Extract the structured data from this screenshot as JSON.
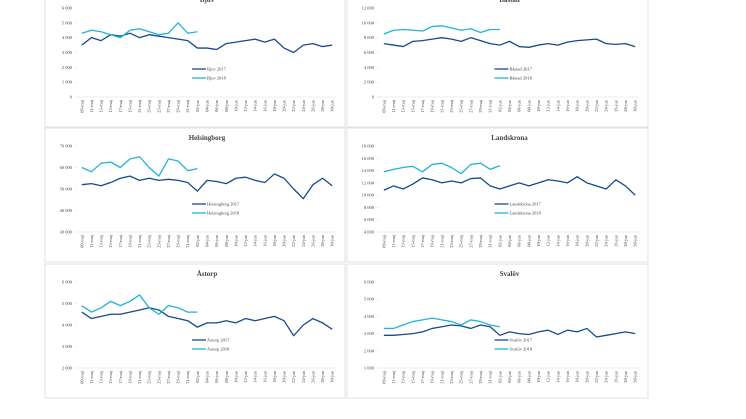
{
  "chart_data": [
    {
      "type": "line",
      "title": "Bjuv",
      "legend": "lower center",
      "grid": false,
      "categories": [
        "09-maj",
        "11-maj",
        "13-maj",
        "15-maj",
        "17-maj",
        "19-maj",
        "21-maj",
        "23-maj",
        "25-maj",
        "27-maj",
        "29-maj",
        "31-maj",
        "02-jun",
        "04-jun",
        "06-jun",
        "08-jun",
        "10-jun",
        "12-jun",
        "14-jun",
        "16-jun",
        "18-jun",
        "20-jun",
        "22-jun",
        "24-jun",
        "26-jun",
        "28-jun",
        "30-jun"
      ],
      "series": [
        {
          "name": "Bjuv 2017",
          "color": "#174a8b",
          "values": [
            3500,
            4000,
            3800,
            4200,
            4100,
            4300,
            4000,
            4200,
            4100,
            4000,
            3900,
            3800,
            3300,
            3300,
            3200,
            3600,
            3700,
            3800,
            3900,
            3700,
            3900,
            3300,
            3000,
            3500,
            3600,
            3400,
            3500
          ]
        },
        {
          "name": "Bjuv 2018",
          "color": "#21b4d6",
          "values": [
            4300,
            4500,
            4400,
            4200,
            4000,
            4500,
            4600,
            4400,
            4200,
            4300,
            5000,
            4300,
            4400,
            null,
            null,
            null,
            null,
            null,
            null,
            null,
            null,
            null,
            null,
            null,
            null,
            null,
            null
          ]
        }
      ],
      "ylim": [
        0,
        6000
      ],
      "yticks": [
        0,
        {
          "value": 1000,
          "label": "1 000"
        },
        {
          "value": 2000,
          "label": "2 000"
        },
        {
          "value": 3000,
          "label": "3 000"
        },
        {
          "value": 4000,
          "label": "4 000"
        },
        {
          "value": 5000,
          "label": "5 000"
        },
        {
          "value": 6000,
          "label": "6 000"
        }
      ]
    },
    {
      "type": "line",
      "title": "Båstad",
      "legend": "lower center",
      "grid": false,
      "categories": [
        "09-maj",
        "11-maj",
        "13-maj",
        "15-maj",
        "17-maj",
        "19-maj",
        "21-maj",
        "23-maj",
        "25-maj",
        "27-maj",
        "29-maj",
        "31-maj",
        "02-jun",
        "04-jun",
        "06-jun",
        "08-jun",
        "10-jun",
        "12-jun",
        "14-jun",
        "16-jun",
        "18-jun",
        "20-jun",
        "22-jun",
        "24-jun",
        "26-jun",
        "28-jun",
        "30-jun"
      ],
      "series": [
        {
          "name": "Båstad 2017",
          "color": "#174a8b",
          "values": [
            7200,
            7000,
            6800,
            7500,
            7600,
            7800,
            8000,
            7800,
            7500,
            8000,
            7600,
            7200,
            7000,
            7500,
            6800,
            6700,
            7000,
            7200,
            7000,
            7400,
            7600,
            7700,
            7800,
            7200,
            7100,
            7200,
            6800
          ]
        },
        {
          "name": "Båstad 2018",
          "color": "#21b4d6",
          "values": [
            8500,
            9000,
            9100,
            9000,
            8900,
            9500,
            9600,
            9300,
            9000,
            9200,
            8700,
            9100,
            9100,
            null,
            null,
            null,
            null,
            null,
            null,
            null,
            null,
            null,
            null,
            null,
            null,
            null,
            null
          ]
        }
      ],
      "ylim": [
        0,
        12000
      ],
      "yticks": [
        0,
        {
          "value": 2000,
          "label": "2 000"
        },
        {
          "value": 4000,
          "label": "4 000"
        },
        {
          "value": 6000,
          "label": "6 000"
        },
        {
          "value": 8000,
          "label": "8 000"
        },
        {
          "value": 10000,
          "label": "10 000"
        },
        {
          "value": 12000,
          "label": "12 000"
        }
      ]
    },
    {
      "type": "line",
      "title": "Helsingborg",
      "legend": "lower center",
      "grid": false,
      "categories": [
        "09-maj",
        "11-maj",
        "13-maj",
        "15-maj",
        "17-maj",
        "19-maj",
        "21-maj",
        "23-maj",
        "25-maj",
        "27-maj",
        "29-maj",
        "31-maj",
        "02-jun",
        "04-jun",
        "06-jun",
        "08-jun",
        "10-jun",
        "12-jun",
        "14-jun",
        "16-jun",
        "18-jun",
        "20-jun",
        "22-jun",
        "24-jun",
        "26-jun",
        "28-jun",
        "30-jun"
      ],
      "series": [
        {
          "name": "Helsingborg 2017",
          "color": "#174a8b",
          "values": [
            52000,
            52500,
            51500,
            53000,
            55000,
            56000,
            54000,
            55000,
            54000,
            54500,
            54000,
            53000,
            49000,
            54000,
            53500,
            52500,
            55000,
            55500,
            54000,
            53000,
            57000,
            55000,
            50000,
            45500,
            52000,
            55000,
            51500
          ]
        },
        {
          "name": "Helsingborg 2018",
          "color": "#21b4d6",
          "values": [
            60000,
            58000,
            62000,
            62500,
            60000,
            64000,
            65000,
            60000,
            56000,
            64000,
            63000,
            58500,
            59500,
            null,
            null,
            null,
            null,
            null,
            null,
            null,
            null,
            null,
            null,
            null,
            null,
            null,
            null
          ]
        }
      ],
      "ylim": [
        30000,
        70000
      ],
      "yticks": [
        {
          "value": 30000,
          "label": "30 000"
        },
        {
          "value": 40000,
          "label": "40 000"
        },
        {
          "value": 50000,
          "label": "50 000"
        },
        {
          "value": 60000,
          "label": "60 000"
        },
        {
          "value": 70000,
          "label": "70 000"
        }
      ]
    },
    {
      "type": "line",
      "title": "Landskrona",
      "legend": "lower center",
      "grid": false,
      "categories": [
        "09-maj",
        "11-maj",
        "13-maj",
        "15-maj",
        "17-maj",
        "19-maj",
        "21-maj",
        "23-maj",
        "25-maj",
        "27-maj",
        "29-maj",
        "31-maj",
        "02-jun",
        "04-jun",
        "06-jun",
        "08-jun",
        "10-jun",
        "12-jun",
        "14-jun",
        "16-jun",
        "18-jun",
        "20-jun",
        "22-jun",
        "24-jun",
        "26-jun",
        "28-jun",
        "30-jun"
      ],
      "series": [
        {
          "name": "Landskrona 2017",
          "color": "#174a8b",
          "values": [
            10800,
            11500,
            11000,
            11800,
            12800,
            12500,
            12000,
            12300,
            12000,
            12700,
            12800,
            11500,
            11000,
            11500,
            12000,
            11500,
            12000,
            12500,
            12300,
            12000,
            13000,
            12000,
            11500,
            11000,
            12500,
            11500,
            10000
          ]
        },
        {
          "name": "Landskrona 2018",
          "color": "#21b4d6",
          "values": [
            13800,
            14200,
            14500,
            14700,
            13800,
            15000,
            15200,
            14500,
            13500,
            15000,
            15200,
            14200,
            14800,
            null,
            null,
            null,
            null,
            null,
            null,
            null,
            null,
            null,
            null,
            null,
            null,
            null,
            null
          ]
        }
      ],
      "ylim": [
        4000,
        18000
      ],
      "yticks": [
        {
          "value": 4000,
          "label": "4 000"
        },
        {
          "value": 6000,
          "label": "6 000"
        },
        {
          "value": 8000,
          "label": "8 000"
        },
        {
          "value": 10000,
          "label": "10 000"
        },
        {
          "value": 12000,
          "label": "12 000"
        },
        {
          "value": 14000,
          "label": "14 000"
        },
        {
          "value": 16000,
          "label": "16 000"
        },
        {
          "value": 18000,
          "label": "18 000"
        }
      ]
    },
    {
      "type": "line",
      "title": "Åstorp",
      "legend": "lower center",
      "grid": false,
      "categories": [
        "09-maj",
        "11-maj",
        "13-maj",
        "15-maj",
        "17-maj",
        "19-maj",
        "21-maj",
        "23-maj",
        "25-maj",
        "27-maj",
        "29-maj",
        "31-maj",
        "02-jun",
        "04-jun",
        "06-jun",
        "08-jun",
        "10-jun",
        "12-jun",
        "14-jun",
        "16-jun",
        "18-jun",
        "20-jun",
        "22-jun",
        "24-jun",
        "26-jun",
        "28-jun",
        "30-jun"
      ],
      "series": [
        {
          "name": "Åstorp 2017",
          "color": "#174a8b",
          "values": [
            4600,
            4300,
            4400,
            4500,
            4500,
            4600,
            4700,
            4800,
            4700,
            4400,
            4300,
            4200,
            3900,
            4100,
            4100,
            4200,
            4100,
            4300,
            4200,
            4300,
            4400,
            4200,
            3500,
            4000,
            4300,
            4100,
            3800
          ]
        },
        {
          "name": "Åstorp 2018",
          "color": "#21b4d6",
          "values": [
            4900,
            4600,
            4800,
            5100,
            4900,
            5100,
            5400,
            4800,
            4500,
            4900,
            4800,
            4600,
            4600,
            null,
            null,
            null,
            null,
            null,
            null,
            null,
            null,
            null,
            null,
            null,
            null,
            null,
            null
          ]
        }
      ],
      "ylim": [
        2000,
        6000
      ],
      "yticks": [
        {
          "value": 2000,
          "label": "2 000"
        },
        {
          "value": 3000,
          "label": "3 000"
        },
        {
          "value": 4000,
          "label": "4 000"
        },
        {
          "value": 5000,
          "label": "5 000"
        },
        {
          "value": 6000,
          "label": "6 000"
        }
      ]
    },
    {
      "type": "line",
      "title": "Svalöv",
      "legend": "lower center",
      "grid": false,
      "categories": [
        "09-maj",
        "11-maj",
        "13-maj",
        "15-maj",
        "17-maj",
        "19-maj",
        "21-maj",
        "23-maj",
        "25-maj",
        "27-maj",
        "29-maj",
        "31-maj",
        "02-jun",
        "04-jun",
        "06-jun",
        "08-jun",
        "10-jun",
        "12-jun",
        "14-jun",
        "16-jun",
        "18-jun",
        "20-jun",
        "22-jun",
        "24-jun",
        "26-jun",
        "28-jun",
        "30-jun"
      ],
      "series": [
        {
          "name": "Svalöv 2017",
          "color": "#174a8b",
          "values": [
            2900,
            2900,
            2950,
            3000,
            3100,
            3300,
            3400,
            3500,
            3450,
            3300,
            3500,
            3400,
            2900,
            3100,
            3000,
            2950,
            3100,
            3200,
            2950,
            3200,
            3100,
            3300,
            2800,
            2900,
            3000,
            3100,
            3000
          ]
        },
        {
          "name": "Svalöv 2018",
          "color": "#21b4d6",
          "values": [
            3300,
            3300,
            3500,
            3700,
            3800,
            3900,
            3800,
            3700,
            3500,
            3800,
            3700,
            3500,
            3400,
            null,
            null,
            null,
            null,
            null,
            null,
            null,
            null,
            null,
            null,
            null,
            null,
            null,
            null
          ]
        }
      ],
      "ylim": [
        1000,
        6000
      ],
      "yticks": [
        {
          "value": 1000,
          "label": "1 000"
        },
        {
          "value": 2000,
          "label": "2 000"
        },
        {
          "value": 3000,
          "label": "3 000"
        },
        {
          "value": 4000,
          "label": "4 000"
        },
        {
          "value": 5000,
          "label": "5 000"
        },
        {
          "value": 6000,
          "label": "6 000"
        }
      ]
    }
  ]
}
